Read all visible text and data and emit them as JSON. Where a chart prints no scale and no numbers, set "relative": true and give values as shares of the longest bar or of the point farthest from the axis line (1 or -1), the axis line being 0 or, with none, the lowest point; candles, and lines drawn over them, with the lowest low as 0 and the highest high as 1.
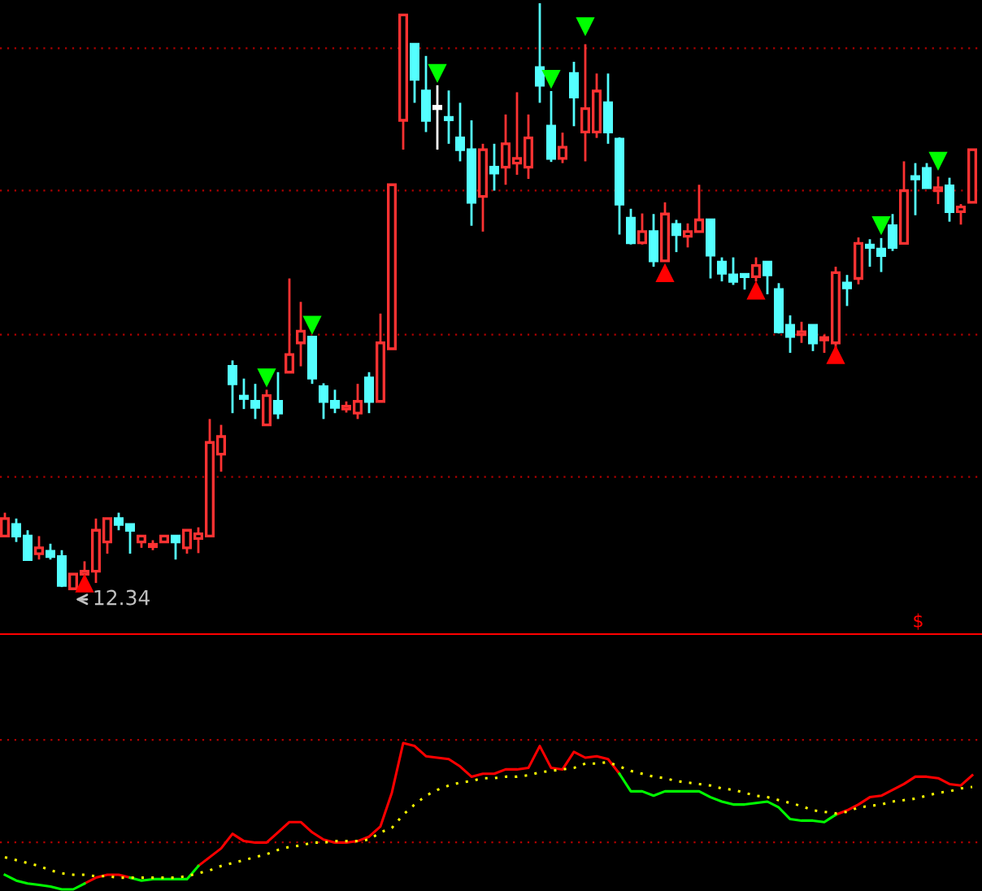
{
  "chart_data": [
    {
      "type": "candlestick",
      "relative": true,
      "categories": [
        null,
        null,
        null,
        null,
        null,
        null,
        null,
        null,
        null,
        null,
        null,
        null,
        null,
        null,
        null,
        null,
        null,
        null,
        null,
        null,
        null,
        null,
        null,
        null,
        null,
        null,
        null,
        null,
        null,
        null,
        null,
        null,
        null,
        null,
        null,
        null,
        null,
        null,
        null,
        null,
        null,
        null,
        null,
        null,
        null,
        null,
        null,
        null,
        null,
        null,
        null,
        null,
        null,
        null,
        null,
        null,
        null,
        null,
        null,
        null,
        null,
        null,
        null,
        null,
        null,
        null,
        null,
        null,
        null,
        null,
        null,
        null,
        null,
        null,
        null,
        null,
        null,
        null,
        null,
        null,
        null,
        null,
        null,
        null,
        null,
        null
      ],
      "ohlc": [
        [
          0.09,
          0.13,
          0.09,
          0.12
        ],
        [
          0.11,
          0.12,
          0.08,
          0.09
        ],
        [
          0.09,
          0.1,
          0.05,
          0.05
        ],
        [
          0.06,
          0.09,
          0.05,
          0.07
        ],
        [
          0.064,
          0.077,
          0.05,
          0.055
        ],
        [
          0.055,
          0.066,
          0.003,
          0.006
        ],
        [
          0,
          0.025,
          0,
          0.025
        ],
        [
          0.025,
          0.047,
          0.025,
          0.03
        ],
        [
          0.03,
          0.12,
          0.01,
          0.1
        ],
        [
          0.08,
          0.12,
          0.06,
          0.12
        ],
        [
          0.12,
          0.13,
          0.1,
          0.11
        ],
        [
          0.11,
          0.11,
          0.06,
          0.1
        ],
        [
          0.08,
          0.09,
          0.07,
          0.09
        ],
        [
          0.072,
          0.083,
          0.066,
          0.075
        ],
        [
          0.08,
          0.09,
          0.08,
          0.09
        ],
        [
          0.09,
          0.09,
          0.05,
          0.08
        ],
        [
          0.07,
          0.1,
          0.06,
          0.1
        ],
        [
          0.086,
          0.105,
          0.061,
          0.094
        ],
        [
          0.09,
          0.29,
          0.09,
          0.25
        ],
        [
          0.23,
          0.28,
          0.2,
          0.26
        ],
        [
          0.38,
          0.39,
          0.3,
          0.35
        ],
        [
          0.326,
          0.359,
          0.307,
          0.325
        ],
        [
          0.32,
          0.35,
          0.29,
          0.31
        ],
        [
          0.28,
          0.34,
          0.28,
          0.33
        ],
        [
          0.32,
          0.37,
          0.29,
          0.3
        ],
        [
          0.37,
          0.53,
          0.37,
          0.4
        ],
        [
          0.42,
          0.49,
          0.38,
          0.44
        ],
        [
          0.43,
          0.43,
          0.35,
          0.36
        ],
        [
          0.345,
          0.351,
          0.29,
          0.32
        ],
        [
          0.32,
          0.34,
          0.3,
          0.31
        ],
        [
          0.307,
          0.32,
          0.301,
          0.312
        ],
        [
          0.3,
          0.35,
          0.29,
          0.32
        ],
        [
          0.36,
          0.37,
          0.3,
          0.32
        ],
        [
          0.32,
          0.47,
          0.32,
          0.42
        ],
        [
          0.41,
          0.69,
          0.41,
          0.69
        ],
        [
          0.8,
          0.98,
          0.75,
          0.98
        ],
        [
          0.93,
          0.93,
          0.83,
          0.87
        ],
        [
          0.85,
          0.91,
          0.78,
          0.8
        ],
        [
          0.82,
          0.86,
          0.75,
          0.82
        ],
        [
          0.804,
          0.851,
          0.76,
          0.801
        ],
        [
          0.77,
          0.83,
          0.73,
          0.75
        ],
        [
          0.75,
          0.8,
          0.62,
          0.66
        ],
        [
          0.67,
          0.76,
          0.61,
          0.75
        ],
        [
          0.72,
          0.76,
          0.68,
          0.71
        ],
        [
          0.72,
          0.81,
          0.69,
          0.76
        ],
        [
          0.727,
          0.848,
          0.707,
          0.735
        ],
        [
          0.72,
          0.81,
          0.7,
          0.77
        ],
        [
          0.89,
          1,
          0.83,
          0.86
        ],
        [
          0.79,
          0.85,
          0.729,
          0.735
        ],
        [
          0.735,
          0.779,
          0.727,
          0.754
        ],
        [
          0.88,
          0.9,
          0.79,
          0.84
        ],
        [
          0.78,
          0.93,
          0.73,
          0.82
        ],
        [
          0.78,
          0.88,
          0.77,
          0.85
        ],
        [
          0.83,
          0.88,
          0.76,
          0.78
        ],
        [
          0.768,
          0.771,
          0.605,
          0.657
        ],
        [
          0.633,
          0.649,
          0.588,
          0.591
        ],
        [
          0.591,
          0.641,
          0.588,
          0.61
        ],
        [
          0.61,
          0.64,
          0.55,
          0.56
        ],
        [
          0.56,
          0.66,
          0.56,
          0.64
        ],
        [
          0.622,
          0.63,
          0.575,
          0.605
        ],
        [
          0.602,
          0.624,
          0.583,
          0.61
        ],
        [
          0.61,
          0.69,
          0.61,
          0.63
        ],
        [
          0.63,
          0.63,
          0.53,
          0.57
        ],
        [
          0.558,
          0.566,
          0.525,
          0.539
        ],
        [
          0.536,
          0.566,
          0.519,
          0.525
        ],
        [
          0.536,
          0.536,
          0.511,
          0.533
        ],
        [
          0.533,
          0.566,
          0.525,
          0.552
        ],
        [
          0.558,
          0.558,
          0.503,
          0.536
        ],
        [
          0.511,
          0.522,
          0.436,
          0.439
        ],
        [
          0.45,
          0.467,
          0.403,
          0.431
        ],
        [
          0.434,
          0.456,
          0.42,
          0.439
        ],
        [
          0.45,
          0.45,
          0.406,
          0.42
        ],
        [
          0.425,
          0.434,
          0.403,
          0.428
        ],
        [
          0.42,
          0.55,
          0.41,
          0.54
        ],
        [
          0.522,
          0.536,
          0.483,
          0.514
        ],
        [
          0.53,
          0.6,
          0.52,
          0.59
        ],
        [
          0.586,
          0.597,
          0.55,
          0.583
        ],
        [
          0.58,
          0.599,
          0.541,
          0.569
        ],
        [
          0.62,
          0.64,
          0.577,
          0.583
        ],
        [
          0.59,
          0.73,
          0.59,
          0.68
        ],
        [
          0.702,
          0.727,
          0.638,
          0.7
        ],
        [
          0.718,
          0.727,
          0.685,
          0.685
        ],
        [
          0.68,
          0.704,
          0.657,
          0.685
        ],
        [
          0.688,
          0.702,
          0.627,
          0.644
        ],
        [
          0.644,
          0.657,
          0.622,
          0.652
        ],
        [
          0.66,
          0.75,
          0.66,
          0.75
        ]
      ],
      "colors": [
        "#ff3232",
        "#54ffff",
        "#54ffff",
        "#ff3232",
        "#54ffff",
        "#54ffff",
        "#ff3232",
        "#ff3232",
        "#ff3232",
        "#ff3232",
        "#54ffff",
        "#54ffff",
        "#ff3232",
        "#ff3232",
        "#ff3232",
        "#54ffff",
        "#ff3232",
        "#ff3232",
        "#ff3232",
        "#ff3232",
        "#54ffff",
        "#54ffff",
        "#54ffff",
        "#ff3232",
        "#54ffff",
        "#ff3232",
        "#ff3232",
        "#54ffff",
        "#54ffff",
        "#54ffff",
        "#ff3232",
        "#ff3232",
        "#54ffff",
        "#ff3232",
        "#ff3232",
        "#ff3232",
        "#54ffff",
        "#54ffff",
        "#ffffff",
        "#54ffff",
        "#54ffff",
        "#54ffff",
        "#ff3232",
        "#54ffff",
        "#ff3232",
        "#ff3232",
        "#ff3232",
        "#54ffff",
        "#54ffff",
        "#ff3232",
        "#54ffff",
        "#ff3232",
        "#ff3232",
        "#54ffff",
        "#54ffff",
        "#54ffff",
        "#ff3232",
        "#54ffff",
        "#ff3232",
        "#54ffff",
        "#ff3232",
        "#ff3232",
        "#54ffff",
        "#54ffff",
        "#54ffff",
        "#54ffff",
        "#ff3232",
        "#54ffff",
        "#54ffff",
        "#54ffff",
        "#ff3232",
        "#54ffff",
        "#ff3232",
        "#ff3232",
        "#54ffff",
        "#ff3232",
        "#54ffff",
        "#54ffff",
        "#54ffff",
        "#ff3232",
        "#54ffff",
        "#54ffff",
        "#ff3232",
        "#54ffff",
        "#ff3232",
        "#ff3232"
      ],
      "series": [
        {
          "type": "scatter",
          "marker": "triangle",
          "color": "#00ff00",
          "values": [
            null,
            null,
            null,
            null,
            null,
            null,
            null,
            null,
            null,
            null,
            null,
            null,
            null,
            null,
            null,
            null,
            null,
            null,
            null,
            null,
            null,
            null,
            null,
            0.36,
            null,
            null,
            null,
            0.45,
            null,
            null,
            null,
            null,
            null,
            null,
            null,
            null,
            null,
            null,
            0.88,
            null,
            null,
            null,
            null,
            null,
            null,
            null,
            null,
            null,
            0.87,
            null,
            null,
            0.96,
            null,
            null,
            null,
            null,
            null,
            null,
            null,
            null,
            null,
            null,
            null,
            null,
            null,
            null,
            null,
            null,
            null,
            null,
            null,
            null,
            null,
            null,
            null,
            null,
            null,
            0.62,
            null,
            null,
            null,
            null,
            0.73,
            null,
            null,
            null
          ]
        },
        {
          "type": "scatter",
          "marker": "triangle",
          "color": "#ff0000",
          "values": [
            null,
            null,
            null,
            null,
            null,
            null,
            null,
            0.01,
            null,
            null,
            null,
            null,
            null,
            null,
            null,
            null,
            null,
            null,
            null,
            null,
            null,
            null,
            null,
            null,
            null,
            null,
            null,
            null,
            null,
            null,
            null,
            null,
            null,
            null,
            null,
            null,
            null,
            null,
            null,
            null,
            null,
            null,
            null,
            null,
            null,
            null,
            null,
            null,
            null,
            null,
            null,
            null,
            null,
            null,
            null,
            null,
            null,
            null,
            0.54,
            null,
            null,
            null,
            null,
            null,
            null,
            null,
            0.51,
            null,
            null,
            null,
            null,
            null,
            null,
            0.4,
            null,
            null,
            null,
            null,
            null,
            null,
            null,
            null,
            null,
            null,
            null,
            null
          ]
        }
      ],
      "annotations": [
        "12.34",
        "$"
      ],
      "ref_lines": [
        {
          "axis": "y",
          "value": 0.923,
          "color": "#b00000",
          "line_style": "dotted"
        },
        {
          "axis": "y",
          "value": 0.68,
          "color": "#b00000",
          "line_style": "dotted"
        },
        {
          "axis": "y",
          "value": 0.434,
          "color": "#b00000",
          "line_style": "dotted"
        },
        {
          "axis": "y",
          "value": 0.191,
          "color": "#b00000",
          "line_style": "dotted"
        }
      ]
    },
    {
      "type": "line",
      "relative": true,
      "ref_lines": [
        {
          "axis": "y",
          "value": 1.022,
          "color": "#b00000",
          "line_style": "dotted"
        },
        {
          "axis": "y",
          "value": 0.322,
          "color": "#b00000",
          "line_style": "dotted"
        }
      ],
      "categories": [
        null,
        null,
        null,
        null,
        null,
        null,
        null,
        null,
        null,
        null,
        null,
        null,
        null,
        null,
        null,
        null,
        null,
        null,
        null,
        null,
        null,
        null,
        null,
        null,
        null,
        null,
        null,
        null,
        null,
        null,
        null,
        null,
        null,
        null,
        null,
        null,
        null,
        null,
        null,
        null,
        null,
        null,
        null,
        null,
        null,
        null,
        null,
        null,
        null,
        null,
        null,
        null,
        null,
        null,
        null,
        null,
        null,
        null,
        null,
        null,
        null,
        null,
        null,
        null,
        null,
        null,
        null,
        null,
        null,
        null,
        null,
        null,
        null,
        null,
        null,
        null,
        null,
        null,
        null,
        null,
        null,
        null,
        null,
        null,
        null,
        null
      ],
      "series": [
        {
          "color": "#ff0000",
          "line_style": "solid",
          "values": [
            null,
            null,
            null,
            null,
            null,
            null,
            null,
            0.04,
            0.08,
            0.1,
            0.1,
            0.08,
            null,
            null,
            null,
            null,
            null,
            0.16,
            0.22,
            0.28,
            0.38,
            0.33,
            0.32,
            0.32,
            0.39,
            0.46,
            0.46,
            0.39,
            0.34,
            0.32,
            0.32,
            0.33,
            0.36,
            0.43,
            0.66,
            1,
            0.98,
            0.91,
            0.9,
            0.89,
            0.84,
            0.77,
            0.79,
            0.79,
            0.82,
            0.82,
            0.83,
            0.98,
            0.83,
            0.82,
            0.94,
            0.9,
            0.91,
            0.89,
            0.79,
            null,
            null,
            null,
            null,
            null,
            null,
            null,
            null,
            null,
            null,
            null,
            null,
            null,
            null,
            null,
            null,
            null,
            null,
            0.51,
            0.54,
            0.58,
            0.63,
            0.64,
            0.68,
            0.72,
            0.77,
            0.77,
            0.76,
            0.72,
            0.71,
            0.78
          ]
        },
        {
          "color": "#00ff00",
          "line_style": "solid",
          "values": [
            0.1,
            0.06,
            0.04,
            0.03,
            0.02,
            0,
            0,
            0.04,
            null,
            null,
            null,
            0.08,
            0.06,
            0.07,
            0.07,
            0.07,
            0.07,
            0.16,
            null,
            null,
            null,
            null,
            null,
            null,
            null,
            null,
            null,
            null,
            null,
            null,
            null,
            null,
            null,
            null,
            null,
            null,
            null,
            null,
            null,
            null,
            null,
            null,
            null,
            null,
            null,
            null,
            null,
            null,
            null,
            null,
            null,
            null,
            null,
            null,
            0.79,
            0.67,
            0.67,
            0.64,
            0.67,
            0.67,
            0.67,
            0.67,
            0.63,
            0.6,
            0.58,
            0.58,
            0.59,
            0.6,
            0.56,
            0.48,
            0.47,
            0.47,
            0.46,
            0.51,
            null,
            null,
            null,
            null,
            null,
            null,
            null,
            null,
            null,
            null,
            null,
            null
          ]
        },
        {
          "color": "#ffff00",
          "line_style": "dotted",
          "values": [
            0.22,
            0.2,
            0.18,
            0.16,
            0.13,
            0.11,
            0.1,
            0.1,
            0.09,
            0.09,
            0.08,
            0.08,
            0.08,
            0.08,
            0.08,
            0.08,
            0.09,
            0.11,
            0.13,
            0.16,
            0.18,
            0.2,
            0.22,
            0.24,
            0.27,
            0.29,
            0.3,
            0.32,
            0.32,
            0.33,
            0.33,
            0.33,
            0.34,
            0.39,
            0.42,
            0.51,
            0.58,
            0.64,
            0.68,
            0.71,
            0.73,
            0.74,
            0.76,
            0.76,
            0.77,
            0.77,
            0.78,
            0.8,
            0.81,
            0.82,
            0.83,
            0.86,
            0.86,
            0.87,
            0.84,
            0.81,
            0.79,
            0.77,
            0.76,
            0.74,
            0.73,
            0.72,
            0.71,
            0.69,
            0.68,
            0.66,
            0.64,
            0.63,
            0.61,
            0.59,
            0.57,
            0.54,
            0.53,
            0.52,
            0.53,
            0.56,
            0.57,
            0.58,
            0.6,
            0.61,
            0.62,
            0.64,
            0.66,
            0.67,
            0.69,
            0.7
          ]
        }
      ]
    }
  ]
}
